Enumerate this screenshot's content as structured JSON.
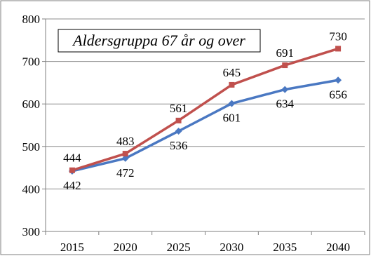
{
  "chart_data": {
    "type": "line",
    "title": "Aldersgruppa 67 år og over",
    "categories": [
      "2015",
      "2020",
      "2025",
      "2030",
      "2035",
      "2040"
    ],
    "ylim": [
      300,
      800
    ],
    "yticks": [
      "300",
      "400",
      "500",
      "600",
      "700",
      "800"
    ],
    "grid": "horizontal",
    "series": [
      {
        "color": "#4a78c2",
        "marker": "diamond",
        "values": [
          442,
          472,
          536,
          601,
          634,
          656
        ],
        "labels": [
          "442",
          "472",
          "536",
          "601",
          "634",
          "656"
        ]
      },
      {
        "color": "#c0504d",
        "marker": "square",
        "values": [
          444,
          483,
          561,
          645,
          691,
          730
        ],
        "labels": [
          "444",
          "483",
          "561",
          "645",
          "691",
          "730"
        ]
      }
    ]
  }
}
